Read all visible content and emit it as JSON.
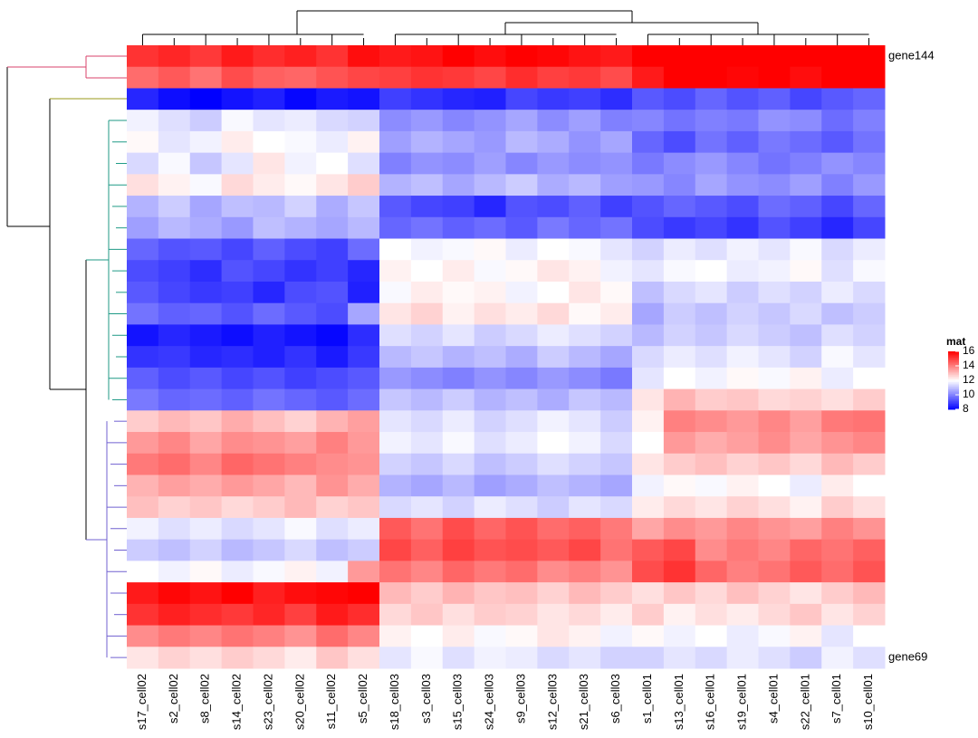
{
  "chart_data": {
    "type": "heatmap",
    "columns": [
      "s17_cell02",
      "s2_cell02",
      "s8_cell02",
      "s14_cell02",
      "s23_cell02",
      "s20_cell02",
      "s11_cell02",
      "s5_cell02",
      "s18_cell03",
      "s3_cell03",
      "s15_cell03",
      "s24_cell03",
      "s9_cell03",
      "s12_cell03",
      "s21_cell03",
      "s6_cell03",
      "s1_cell01",
      "s13_cell01",
      "s16_cell01",
      "s19_cell01",
      "s4_cell01",
      "s22_cell01",
      "s7_cell01",
      "s10_cell01"
    ],
    "row_labels": [
      "gene144",
      null,
      null,
      null,
      null,
      null,
      null,
      null,
      null,
      null,
      null,
      null,
      null,
      null,
      null,
      null,
      null,
      null,
      null,
      null,
      null,
      null,
      null,
      null,
      null,
      null,
      null,
      null,
      "gene69"
    ],
    "values": [
      [
        15.2,
        15.4,
        15.1,
        15.6,
        15.3,
        15.5,
        15.2,
        15.8,
        15.6,
        15.7,
        16.0,
        15.8,
        16.1,
        15.9,
        15.7,
        15.6,
        16.2,
        16.6,
        16.5,
        16.3,
        16.6,
        16.4,
        16.5,
        16.7
      ],
      [
        14.3,
        14.6,
        14.2,
        14.8,
        14.5,
        14.4,
        14.7,
        14.9,
        15.0,
        15.2,
        15.1,
        14.9,
        15.3,
        15.0,
        15.1,
        14.8,
        15.6,
        16.2,
        16.0,
        15.9,
        16.1,
        15.8,
        16.3,
        16.0
      ],
      [
        8.6,
        8.2,
        8.0,
        8.3,
        8.5,
        8.1,
        8.4,
        8.3,
        9.0,
        8.8,
        8.6,
        8.5,
        9.1,
        8.9,
        9.0,
        8.7,
        9.4,
        9.2,
        9.6,
        9.3,
        9.5,
        9.1,
        9.4,
        9.6
      ],
      [
        11.8,
        11.5,
        11.2,
        11.9,
        11.6,
        11.7,
        11.4,
        11.3,
        10.2,
        10.4,
        10.1,
        10.3,
        10.6,
        10.2,
        10.5,
        10.0,
        10.1,
        9.8,
        10.0,
        9.9,
        10.3,
        10.2,
        9.7,
        10.0
      ],
      [
        12.1,
        11.6,
        11.8,
        12.3,
        12.0,
        11.9,
        11.7,
        12.2,
        10.5,
        10.8,
        10.6,
        10.4,
        10.9,
        10.7,
        10.3,
        10.6,
        9.6,
        9.2,
        9.8,
        9.5,
        9.9,
        9.7,
        9.4,
        9.8
      ],
      [
        11.4,
        11.9,
        11.1,
        11.6,
        12.4,
        11.8,
        12.0,
        11.5,
        10.0,
        10.3,
        10.2,
        10.5,
        10.1,
        10.4,
        10.2,
        10.3,
        9.9,
        10.2,
        10.4,
        10.1,
        9.8,
        10.0,
        10.3,
        10.1
      ],
      [
        12.5,
        12.2,
        11.9,
        12.6,
        12.3,
        12.1,
        12.4,
        12.8,
        10.8,
        11.0,
        10.6,
        10.9,
        11.2,
        10.7,
        10.9,
        10.5,
        10.4,
        10.1,
        10.6,
        10.3,
        10.2,
        10.5,
        10.0,
        10.4
      ],
      [
        10.8,
        11.2,
        10.6,
        11.0,
        10.9,
        11.3,
        10.7,
        11.1,
        9.4,
        9.1,
        9.0,
        8.6,
        9.3,
        9.2,
        9.5,
        9.0,
        9.3,
        9.6,
        9.4,
        9.2,
        9.7,
        9.5,
        9.1,
        9.6
      ],
      [
        10.5,
        10.9,
        10.7,
        10.4,
        11.0,
        10.8,
        10.6,
        10.9,
        9.6,
        9.8,
        9.5,
        9.7,
        9.4,
        9.9,
        9.6,
        9.8,
        9.2,
        8.9,
        9.1,
        8.8,
        9.3,
        9.0,
        8.6,
        9.1
      ],
      [
        9.6,
        9.3,
        9.4,
        9.1,
        9.5,
        9.2,
        9.0,
        9.7,
        12.0,
        11.8,
        11.9,
        12.1,
        11.7,
        12.0,
        11.9,
        11.6,
        11.3,
        11.7,
        11.5,
        11.8,
        11.6,
        11.9,
        11.4,
        11.7
      ],
      [
        9.2,
        9.0,
        8.7,
        9.3,
        9.1,
        8.8,
        9.0,
        8.6,
        12.2,
        12.0,
        12.3,
        11.9,
        12.1,
        12.4,
        12.2,
        11.8,
        11.6,
        11.9,
        12.0,
        11.7,
        11.8,
        12.1,
        11.5,
        11.9
      ],
      [
        9.4,
        9.1,
        8.9,
        9.0,
        8.6,
        9.2,
        9.3,
        8.5,
        11.9,
        12.3,
        12.1,
        12.2,
        11.8,
        12.0,
        12.4,
        12.1,
        11.0,
        11.4,
        11.6,
        11.2,
        11.5,
        11.3,
        11.7,
        11.4
      ],
      [
        9.8,
        9.5,
        9.6,
        9.3,
        9.7,
        9.4,
        9.2,
        10.6,
        12.4,
        12.7,
        12.2,
        12.5,
        12.3,
        12.6,
        12.1,
        12.3,
        10.6,
        11.2,
        11.0,
        11.3,
        11.1,
        11.4,
        11.0,
        11.2
      ],
      [
        8.3,
        8.6,
        8.4,
        8.2,
        8.5,
        8.3,
        8.1,
        8.7,
        11.5,
        11.3,
        11.6,
        11.2,
        11.4,
        11.7,
        11.5,
        11.3,
        10.9,
        11.3,
        11.1,
        11.4,
        11.2,
        11.0,
        11.5,
        11.3
      ],
      [
        8.8,
        8.9,
        8.6,
        8.7,
        8.5,
        8.8,
        8.4,
        8.9,
        10.9,
        11.1,
        10.8,
        11.0,
        10.7,
        11.2,
        10.9,
        10.6,
        11.4,
        11.7,
        11.5,
        11.8,
        11.6,
        11.3,
        11.9,
        11.6
      ],
      [
        9.5,
        9.2,
        9.4,
        9.1,
        9.3,
        9.0,
        9.2,
        9.4,
        10.4,
        10.2,
        10.0,
        10.3,
        10.1,
        10.4,
        10.2,
        9.9,
        11.6,
        12.0,
        11.8,
        12.1,
        11.9,
        12.2,
        11.7,
        12.0
      ],
      [
        9.9,
        9.6,
        9.7,
        9.5,
        9.8,
        9.6,
        9.4,
        9.7,
        11.1,
        10.9,
        11.2,
        10.8,
        11.0,
        10.7,
        11.1,
        10.9,
        12.4,
        13.2,
        12.8,
        12.9,
        12.6,
        12.7,
        12.5,
        12.8
      ],
      [
        12.8,
        13.1,
        12.9,
        13.3,
        13.0,
        12.7,
        13.2,
        13.5,
        11.6,
        11.4,
        11.7,
        11.3,
        11.5,
        11.8,
        11.6,
        11.2,
        12.2,
        14.0,
        13.8,
        13.6,
        13.9,
        13.5,
        14.1,
        14.2
      ],
      [
        13.6,
        13.9,
        13.4,
        13.8,
        13.7,
        13.5,
        14.0,
        13.6,
        11.8,
        11.6,
        11.9,
        11.5,
        11.7,
        12.0,
        11.8,
        11.4,
        12.0,
        13.6,
        13.3,
        13.5,
        13.8,
        13.4,
        13.7,
        13.9
      ],
      [
        14.1,
        14.3,
        13.9,
        14.4,
        14.2,
        14.0,
        13.8,
        13.7,
        11.3,
        11.1,
        11.4,
        11.0,
        11.2,
        11.5,
        11.3,
        11.1,
        12.4,
        12.8,
        13.0,
        12.7,
        12.9,
        12.6,
        13.1,
        12.8
      ],
      [
        13.2,
        13.5,
        13.3,
        13.6,
        13.4,
        13.1,
        13.7,
        13.3,
        10.8,
        10.6,
        10.9,
        10.5,
        10.7,
        11.0,
        10.8,
        10.6,
        11.8,
        12.1,
        11.9,
        12.2,
        12.0,
        11.7,
        12.3,
        12.0
      ],
      [
        13.0,
        12.7,
        12.9,
        12.6,
        12.8,
        13.1,
        12.7,
        12.9,
        11.4,
        11.6,
        11.3,
        11.7,
        11.5,
        11.2,
        11.6,
        11.4,
        12.3,
        12.6,
        12.4,
        12.7,
        12.5,
        12.2,
        12.8,
        12.5
      ],
      [
        11.8,
        11.5,
        11.7,
        11.4,
        11.6,
        11.9,
        11.5,
        11.7,
        14.6,
        14.2,
        14.8,
        14.4,
        14.7,
        14.3,
        14.5,
        14.1,
        13.4,
        13.8,
        13.6,
        13.9,
        13.7,
        13.5,
        14.0,
        13.7
      ],
      [
        11.2,
        11.0,
        11.3,
        10.9,
        11.1,
        11.4,
        11.0,
        11.2,
        14.9,
        14.5,
        15.0,
        14.7,
        14.8,
        14.6,
        14.9,
        14.2,
        14.6,
        14.9,
        13.8,
        14.1,
        13.9,
        14.4,
        14.2,
        14.5
      ],
      [
        12.0,
        11.8,
        12.1,
        11.7,
        11.9,
        12.2,
        11.8,
        13.6,
        14.2,
        13.9,
        14.4,
        14.1,
        14.3,
        13.8,
        14.0,
        13.7,
        14.8,
        15.2,
        14.4,
        14.0,
        14.2,
        14.6,
        14.3,
        14.7
      ],
      [
        15.6,
        15.9,
        15.7,
        16.0,
        15.5,
        15.8,
        15.9,
        16.2,
        13.1,
        12.8,
        13.2,
        12.9,
        13.0,
        12.7,
        13.1,
        12.8,
        12.5,
        12.9,
        12.6,
        13.0,
        12.7,
        12.4,
        12.8,
        13.1
      ],
      [
        15.2,
        15.5,
        15.3,
        15.1,
        15.4,
        15.0,
        15.6,
        15.3,
        12.6,
        12.9,
        12.5,
        12.8,
        12.7,
        12.4,
        12.6,
        12.3,
        12.8,
        12.2,
        12.5,
        12.3,
        12.6,
        12.9,
        12.4,
        12.7
      ],
      [
        13.8,
        14.1,
        13.9,
        14.2,
        14.0,
        13.7,
        14.3,
        13.9,
        12.2,
        12.0,
        12.3,
        11.9,
        12.1,
        12.4,
        12.2,
        11.8,
        12.1,
        11.8,
        12.0,
        11.7,
        11.9,
        12.2,
        11.6,
        12.0
      ],
      [
        12.4,
        12.7,
        12.5,
        12.8,
        12.6,
        12.3,
        12.9,
        12.5,
        11.6,
        11.9,
        11.5,
        11.8,
        11.7,
        11.4,
        11.6,
        11.3,
        11.3,
        11.6,
        11.4,
        11.7,
        11.5,
        11.2,
        11.8,
        11.5
      ]
    ],
    "legend_title": "mat",
    "color_stops": [
      {
        "value": 8,
        "color": "#0000ff"
      },
      {
        "value": 12,
        "color": "#ffffff"
      },
      {
        "value": 16,
        "color": "#ff0000"
      }
    ],
    "legend_ticks": [
      8,
      10,
      12,
      14,
      16
    ]
  }
}
